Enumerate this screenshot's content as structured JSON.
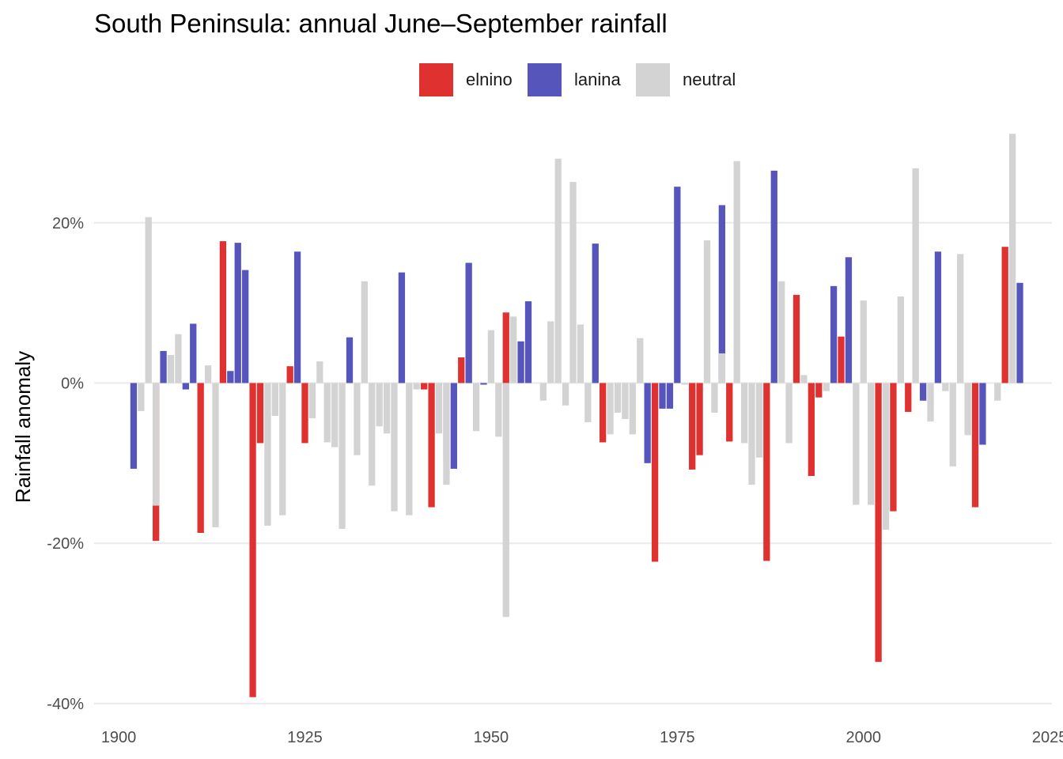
{
  "chart_data": {
    "type": "bar",
    "title": "South Peninsula: annual June–September rainfall",
    "xlabel": "",
    "ylabel": "Rainfall anomaly",
    "xlim": [
      1896.7,
      2025.3
    ],
    "ylim": [
      -0.41,
      0.33
    ],
    "x_ticks": [
      {
        "value": 1900,
        "label": "1900"
      },
      {
        "value": 1925,
        "label": "1925"
      },
      {
        "value": 1950,
        "label": "1950"
      },
      {
        "value": 1975,
        "label": "1975"
      },
      {
        "value": 2000,
        "label": "2000"
      },
      {
        "value": 2025,
        "label": "2025"
      }
    ],
    "y_ticks": [
      {
        "value": 0.2,
        "label": "20%"
      },
      {
        "value": 0.0,
        "label": "0%"
      },
      {
        "value": -0.2,
        "label": "-20%"
      },
      {
        "value": -0.4,
        "label": "-40%"
      }
    ],
    "grid": true,
    "legend_position": "top",
    "legend": [
      {
        "key": "elnino",
        "label": "elnino",
        "color": "#e03131"
      },
      {
        "key": "lanina",
        "label": "lanina",
        "color": "#5555bb"
      },
      {
        "key": "neutral",
        "label": "neutral",
        "color": "#d3d3d3"
      }
    ],
    "series": [
      {
        "name": "elnino",
        "color": "#e03131",
        "points": [
          [
            1905,
            -0.197
          ],
          [
            1911,
            -0.187
          ],
          [
            1914,
            0.177
          ],
          [
            1918,
            -0.392
          ],
          [
            1919,
            -0.075
          ],
          [
            1923,
            0.021
          ],
          [
            1925,
            -0.075
          ],
          [
            1941,
            -0.008
          ],
          [
            1942,
            -0.155
          ],
          [
            1946,
            0.032
          ],
          [
            1952,
            0.088
          ],
          [
            1965,
            -0.074
          ],
          [
            1972,
            -0.223
          ],
          [
            1977,
            -0.108
          ],
          [
            1978,
            -0.09
          ],
          [
            1982,
            -0.073
          ],
          [
            1987,
            -0.222
          ],
          [
            1991,
            0.11
          ],
          [
            1993,
            -0.116
          ],
          [
            1994,
            -0.018
          ],
          [
            1997,
            0.058
          ],
          [
            2002,
            -0.348
          ],
          [
            2004,
            -0.16
          ],
          [
            2006,
            -0.036
          ],
          [
            2015,
            -0.155
          ],
          [
            2019,
            0.17
          ]
        ]
      },
      {
        "name": "lanina",
        "color": "#5555bb",
        "points": [
          [
            1902,
            -0.107
          ],
          [
            1906,
            0.04
          ],
          [
            1909,
            -0.008
          ],
          [
            1910,
            0.074
          ],
          [
            1915,
            0.015
          ],
          [
            1916,
            0.175
          ],
          [
            1917,
            0.141
          ],
          [
            1924,
            0.164
          ],
          [
            1931,
            0.057
          ],
          [
            1938,
            0.138
          ],
          [
            1945,
            -0.107
          ],
          [
            1947,
            0.15
          ],
          [
            1949,
            -0.002
          ],
          [
            1954,
            0.052
          ],
          [
            1955,
            0.102
          ],
          [
            1964,
            0.174
          ],
          [
            1971,
            -0.1
          ],
          [
            1973,
            -0.032
          ],
          [
            1974,
            -0.032
          ],
          [
            1975,
            0.245
          ],
          [
            1981,
            0.222
          ],
          [
            1988,
            0.265
          ],
          [
            1996,
            0.121
          ],
          [
            1998,
            0.157
          ],
          [
            2008,
            -0.022
          ],
          [
            2010,
            0.164
          ],
          [
            2016,
            -0.077
          ],
          [
            2021,
            0.125
          ]
        ]
      },
      {
        "name": "neutral",
        "color": "#d3d3d3",
        "points": [
          [
            1903,
            -0.035
          ],
          [
            1904,
            0.207
          ],
          [
            1905,
            -0.153
          ],
          [
            1907,
            0.035
          ],
          [
            1908,
            0.061
          ],
          [
            1912,
            0.022
          ],
          [
            1913,
            -0.18
          ],
          [
            1920,
            -0.178
          ],
          [
            1921,
            -0.041
          ],
          [
            1922,
            -0.165
          ],
          [
            1926,
            -0.044
          ],
          [
            1927,
            0.027
          ],
          [
            1928,
            -0.074
          ],
          [
            1929,
            -0.08
          ],
          [
            1930,
            -0.182
          ],
          [
            1932,
            -0.09
          ],
          [
            1933,
            0.127
          ],
          [
            1934,
            -0.128
          ],
          [
            1935,
            -0.054
          ],
          [
            1936,
            -0.063
          ],
          [
            1937,
            -0.16
          ],
          [
            1939,
            -0.165
          ],
          [
            1940,
            -0.008
          ],
          [
            1943,
            -0.063
          ],
          [
            1944,
            -0.097
          ],
          [
            1944,
            -0.127
          ],
          [
            1948,
            -0.06
          ],
          [
            1950,
            0.066
          ],
          [
            1951,
            -0.067
          ],
          [
            1952,
            -0.292
          ],
          [
            1953,
            0.083
          ],
          [
            1957,
            -0.022
          ],
          [
            1958,
            0.077
          ],
          [
            1959,
            0.28
          ],
          [
            1960,
            -0.028
          ],
          [
            1961,
            0.251
          ],
          [
            1962,
            0.073
          ],
          [
            1963,
            -0.049
          ],
          [
            1966,
            -0.064
          ],
          [
            1967,
            -0.037
          ],
          [
            1968,
            -0.045
          ],
          [
            1969,
            -0.064
          ],
          [
            1970,
            0.056
          ],
          [
            1976,
            -0.002
          ],
          [
            1979,
            0.178
          ],
          [
            1980,
            -0.037
          ],
          [
            1981,
            0.037
          ],
          [
            1983,
            0.277
          ],
          [
            1984,
            -0.075
          ],
          [
            1985,
            -0.127
          ],
          [
            1986,
            -0.093
          ],
          [
            1989,
            0.127
          ],
          [
            1990,
            -0.075
          ],
          [
            1992,
            0.01
          ],
          [
            1995,
            -0.01
          ],
          [
            1999,
            -0.152
          ],
          [
            2000,
            0.103
          ],
          [
            2001,
            -0.152
          ],
          [
            2003,
            -0.183
          ],
          [
            2005,
            0.108
          ],
          [
            2007,
            0.268
          ],
          [
            2009,
            -0.048
          ],
          [
            2011,
            -0.01
          ],
          [
            2012,
            -0.104
          ],
          [
            2013,
            0.161
          ],
          [
            2014,
            -0.065
          ],
          [
            2018,
            -0.022
          ],
          [
            2020,
            0.311
          ]
        ]
      }
    ]
  }
}
